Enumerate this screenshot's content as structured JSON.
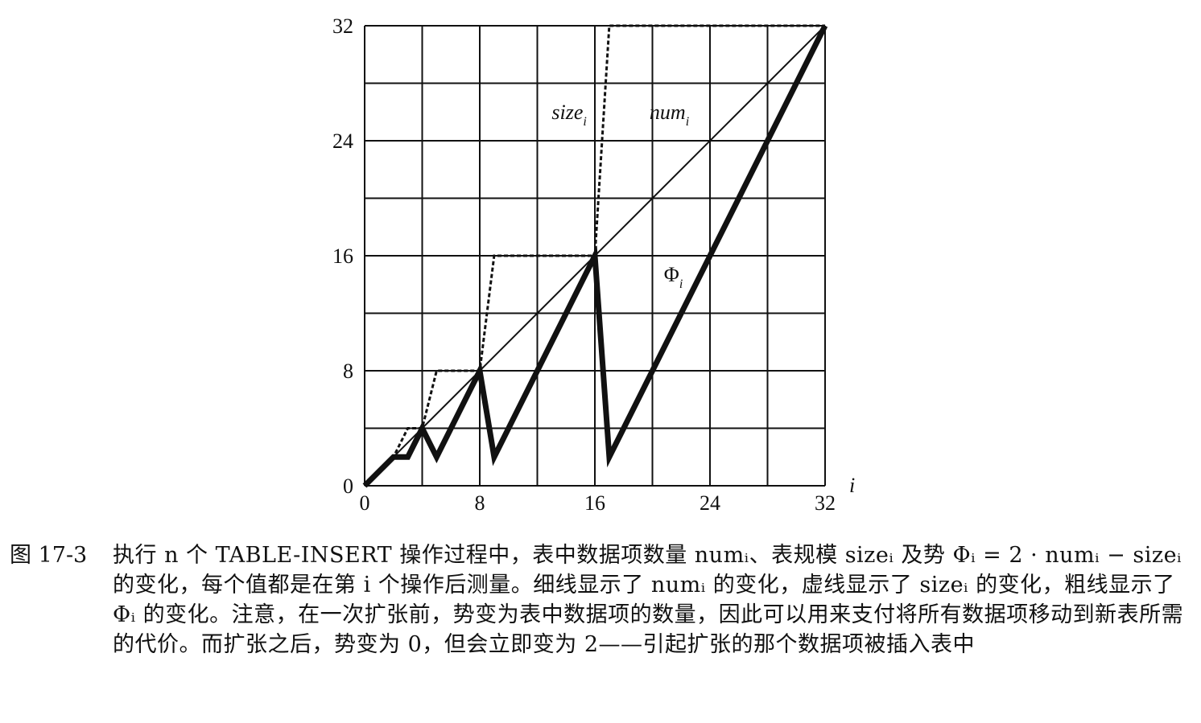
{
  "chart_data": {
    "type": "line",
    "xlabel": "i",
    "ylabel": "",
    "xlim": [
      0,
      32
    ],
    "ylim": [
      0,
      32
    ],
    "x_ticks": [
      0,
      8,
      16,
      24,
      32
    ],
    "y_ticks": [
      0,
      8,
      16,
      24,
      32
    ],
    "grid": true,
    "grid_step": 4,
    "series": [
      {
        "name": "num_i",
        "style": "thin",
        "color": "#111111",
        "points": [
          [
            0,
            0
          ],
          [
            32,
            32
          ]
        ]
      },
      {
        "name": "size_i",
        "style": "dashed",
        "color": "#111111",
        "points": [
          [
            0,
            0
          ],
          [
            1,
            1
          ],
          [
            2,
            2
          ],
          [
            3,
            4
          ],
          [
            4,
            4
          ],
          [
            5,
            8
          ],
          [
            8,
            8
          ],
          [
            9,
            16
          ],
          [
            16,
            16
          ],
          [
            17,
            32
          ],
          [
            32,
            32
          ]
        ]
      },
      {
        "name": "Φ_i",
        "style": "thick",
        "color": "#111111",
        "points": [
          [
            0,
            0
          ],
          [
            1,
            1
          ],
          [
            2,
            2
          ],
          [
            3,
            2
          ],
          [
            4,
            4
          ],
          [
            5,
            2
          ],
          [
            8,
            8
          ],
          [
            9,
            2
          ],
          [
            16,
            16
          ],
          [
            17,
            2
          ],
          [
            32,
            32
          ]
        ]
      }
    ],
    "annotations": [
      {
        "base": "size",
        "sub": "i",
        "italic": true,
        "x": 13.0,
        "y": 25.5
      },
      {
        "base": "num",
        "sub": "i",
        "italic": true,
        "x": 19.8,
        "y": 25.5
      },
      {
        "base": "Φ",
        "sub": "i",
        "italic": false,
        "x": 20.8,
        "y": 14.2
      }
    ]
  },
  "caption": {
    "number": "图 17-3",
    "text": "执行 n 个 TABLE-INSERT 操作过程中，表中数据项数量 numᵢ、表规模 sizeᵢ 及势 Φᵢ = 2 · numᵢ − sizeᵢ 的变化，每个值都是在第 i 个操作后测量。细线显示了 numᵢ 的变化，虚线显示了 sizeᵢ 的变化，粗线显示了 Φᵢ 的变化。注意，在一次扩张前，势变为表中数据项的数量，因此可以用来支付将所有数据项移动到新表所需的代价。而扩张之后，势变为 0，但会立即变为 2——引起扩张的那个数据项被插入表中"
  }
}
